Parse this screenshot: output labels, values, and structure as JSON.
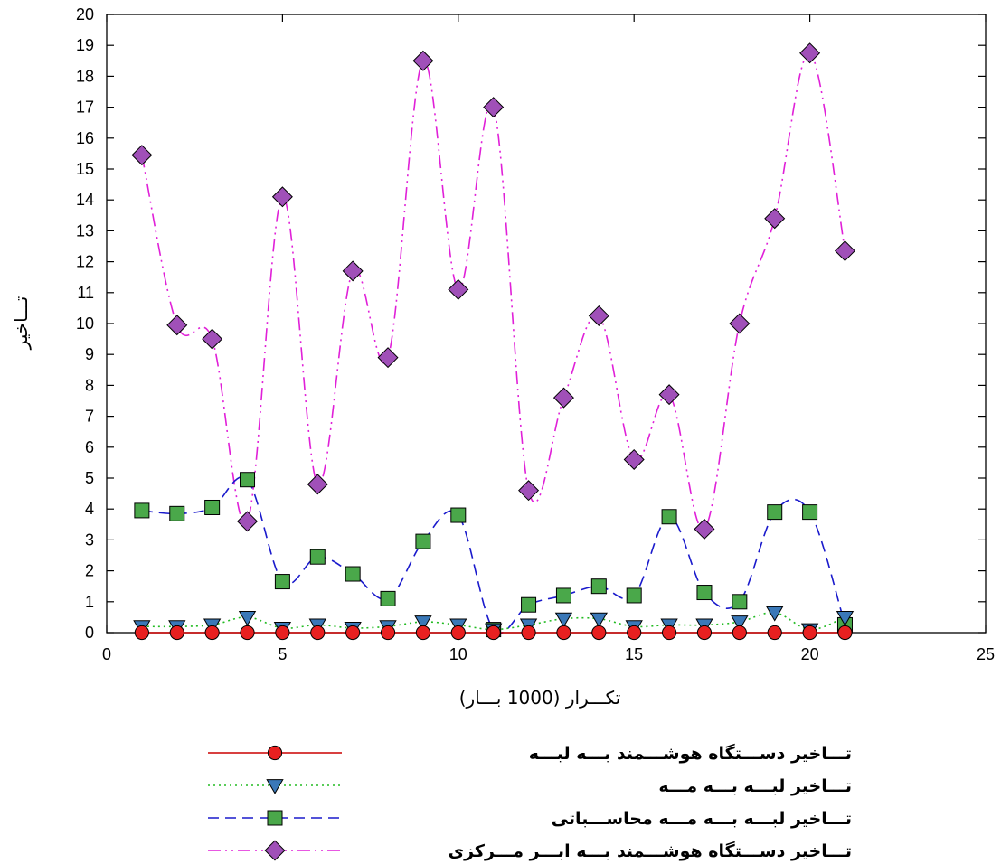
{
  "chart_data": {
    "type": "line",
    "title": "",
    "xlabel": "تکـــرار (1000 بـــار)",
    "ylabel": "تـــاخیر",
    "xlim": [
      0,
      25
    ],
    "ylim": [
      0,
      20
    ],
    "xticks": [
      0,
      5,
      10,
      15,
      20,
      25
    ],
    "yticks": [
      0,
      1,
      2,
      3,
      4,
      5,
      6,
      7,
      8,
      9,
      10,
      11,
      12,
      13,
      14,
      15,
      16,
      17,
      18,
      19,
      20
    ],
    "grid": false,
    "legend_position": "bottom",
    "x": [
      1,
      2,
      3,
      4,
      5,
      6,
      7,
      8,
      9,
      10,
      11,
      12,
      13,
      14,
      15,
      16,
      17,
      18,
      19,
      20,
      21
    ],
    "series": [
      {
        "name": "تـــاخیر دســـتگاه هوشـــمند بـــه لبـــه",
        "color": "#cc0000",
        "marker_color": "#e82020",
        "marker": "circle",
        "line_style": "solid",
        "values": [
          0,
          0,
          0,
          0,
          0,
          0,
          0,
          0,
          0,
          0,
          0,
          0,
          0,
          0,
          0,
          0,
          0,
          0,
          0,
          0,
          0
        ]
      },
      {
        "name": "تـــاخیر لبـــه بـــه مـــه",
        "color": "#22bb22",
        "marker_color": "#3a78b8",
        "marker": "triangle-down",
        "line_style": "dotted",
        "values": [
          0.2,
          0.2,
          0.25,
          0.5,
          0.15,
          0.25,
          0.15,
          0.2,
          0.35,
          0.25,
          0.1,
          0.25,
          0.45,
          0.45,
          0.2,
          0.25,
          0.25,
          0.35,
          0.65,
          0.1,
          0.5
        ]
      },
      {
        "name": "تـــاخیر لبـــه بـــه مـــه محاســـباتی",
        "color": "#1a1acc",
        "marker_color": "#4aa84a",
        "marker": "square",
        "line_style": "dashed",
        "values": [
          3.95,
          3.85,
          4.05,
          4.95,
          1.65,
          2.45,
          1.9,
          1.1,
          2.95,
          3.8,
          0.1,
          0.9,
          1.2,
          1.5,
          1.2,
          3.75,
          1.3,
          1.0,
          3.9,
          3.9,
          0.25
        ]
      },
      {
        "name": "تـــاخیر دســـتگاه هوشـــمند بـــه ابـــر مـــرکزی",
        "color": "#e020d8",
        "marker_color": "#a050b8",
        "marker": "diamond",
        "line_style": "dash-dot-dot",
        "values": [
          15.45,
          9.95,
          9.5,
          3.6,
          14.1,
          4.8,
          11.7,
          8.9,
          18.5,
          11.1,
          17.0,
          4.6,
          7.6,
          10.25,
          5.6,
          7.7,
          3.35,
          10.0,
          13.4,
          18.75,
          12.35
        ]
      }
    ]
  }
}
